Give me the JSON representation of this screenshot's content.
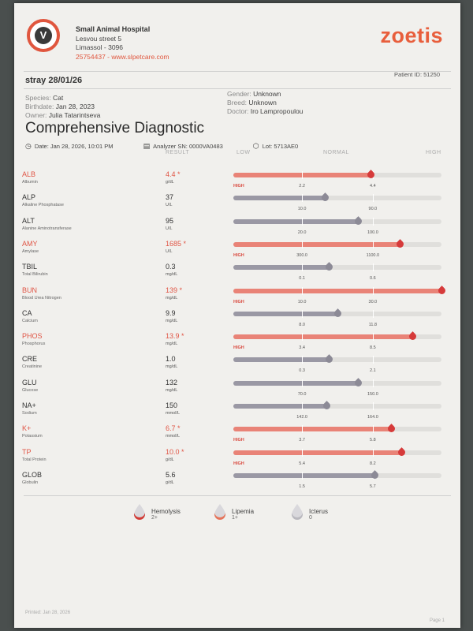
{
  "clinic": {
    "name": "Small Animal Hospital",
    "address1": "Lesvou street 5",
    "address2": "Limassol - 3096",
    "contact": "25754437 - www.slpetcare.com"
  },
  "brand": "zoetis",
  "patient": {
    "name": "stray 28/01/26",
    "id_text": "Patient ID: 51250",
    "species_label": "Species:",
    "species": "Cat",
    "birthdate_label": "Birthdate:",
    "birthdate": "Jan 28, 2023",
    "owner_label": "Owner:",
    "owner": "Julia Tatarintseva",
    "gender_label": "Gender:",
    "gender": "Unknown",
    "breed_label": "Breed:",
    "breed": "Unknown",
    "doctor_label": "Doctor:",
    "doctor": "Iro Lampropoulou"
  },
  "report": {
    "title": "Comprehensive Diagnostic",
    "date": "Date: Jan 28, 2026, 10:01 PM",
    "analyzer": "Analyzer SN: 0000VA0483",
    "lot": "Lot: 5713AE0"
  },
  "columns": {
    "result": "RESULT",
    "low": "LOW",
    "normal": "NORMAL",
    "high": "HIGH"
  },
  "high_label": "HIGH",
  "analytes": [
    {
      "code": "ALB",
      "name": "Albumin",
      "value": "4.4 *",
      "unit": "g/dL",
      "low": "2.2",
      "high": "4.4",
      "level": 0.66,
      "flag": "high"
    },
    {
      "code": "ALP",
      "name": "Alkaline Phosphatase",
      "value": "37",
      "unit": "U/L",
      "low": "10.0",
      "high": "90.0",
      "level": 0.44,
      "flag": "normal"
    },
    {
      "code": "ALT",
      "name": "Alanine Aminotransferase",
      "value": "95",
      "unit": "U/L",
      "low": "20.0",
      "high": "100.0",
      "level": 0.6,
      "flag": "normal"
    },
    {
      "code": "AMY",
      "name": "Amylase",
      "value": "1685 *",
      "unit": "U/L",
      "low": "300.0",
      "high": "1100.0",
      "level": 0.8,
      "flag": "high"
    },
    {
      "code": "TBIL",
      "name": "Total Bilirubin",
      "value": "0.3",
      "unit": "mg/dL",
      "low": "0.1",
      "high": "0.6",
      "level": 0.46,
      "flag": "normal"
    },
    {
      "code": "BUN",
      "name": "Blood Urea Nitrogen",
      "value": "139 *",
      "unit": "mg/dL",
      "low": "10.0",
      "high": "30.0",
      "level": 1.0,
      "flag": "high"
    },
    {
      "code": "CA",
      "name": "Calcium",
      "value": "9.9",
      "unit": "mg/dL",
      "low": "8.0",
      "high": "11.8",
      "level": 0.5,
      "flag": "normal"
    },
    {
      "code": "PHOS",
      "name": "Phosphorus",
      "value": "13.9 *",
      "unit": "mg/dL",
      "low": "3.4",
      "high": "8.5",
      "level": 0.86,
      "flag": "high"
    },
    {
      "code": "CRE",
      "name": "Creatinine",
      "value": "1.0",
      "unit": "mg/dL",
      "low": "0.3",
      "high": "2.1",
      "level": 0.46,
      "flag": "normal"
    },
    {
      "code": "GLU",
      "name": "Glucose",
      "value": "132",
      "unit": "mg/dL",
      "low": "70.0",
      "high": "150.0",
      "level": 0.6,
      "flag": "normal"
    },
    {
      "code": "NA+",
      "name": "Sodium",
      "value": "150",
      "unit": "mmol/L",
      "low": "142.0",
      "high": "164.0",
      "level": 0.45,
      "flag": "normal"
    },
    {
      "code": "K+",
      "name": "Potassium",
      "value": "6.7 *",
      "unit": "mmol/L",
      "low": "3.7",
      "high": "5.8",
      "level": 0.76,
      "flag": "high"
    },
    {
      "code": "TP",
      "name": "Total Protein",
      "value": "10.0 *",
      "unit": "g/dL",
      "low": "5.4",
      "high": "8.2",
      "level": 0.81,
      "flag": "high"
    },
    {
      "code": "GLOB",
      "name": "Globulin",
      "value": "5.6",
      "unit": "g/dL",
      "low": "1.5",
      "high": "5.7",
      "level": 0.68,
      "flag": "normal"
    }
  ],
  "indices": [
    {
      "name": "Hemolysis",
      "value": "2+",
      "color": "#d23b35"
    },
    {
      "name": "Lipemia",
      "value": "1+",
      "color": "#e6745a"
    },
    {
      "name": "Icterus",
      "value": "0",
      "color": "#b9b8be"
    }
  ],
  "footer": {
    "printed": "Printed: Jan 28, 2026",
    "page": "Page 1"
  },
  "colors": {
    "accent": "#e85e3c",
    "high": "#e05545",
    "normal_bar": "#9a98a4"
  }
}
